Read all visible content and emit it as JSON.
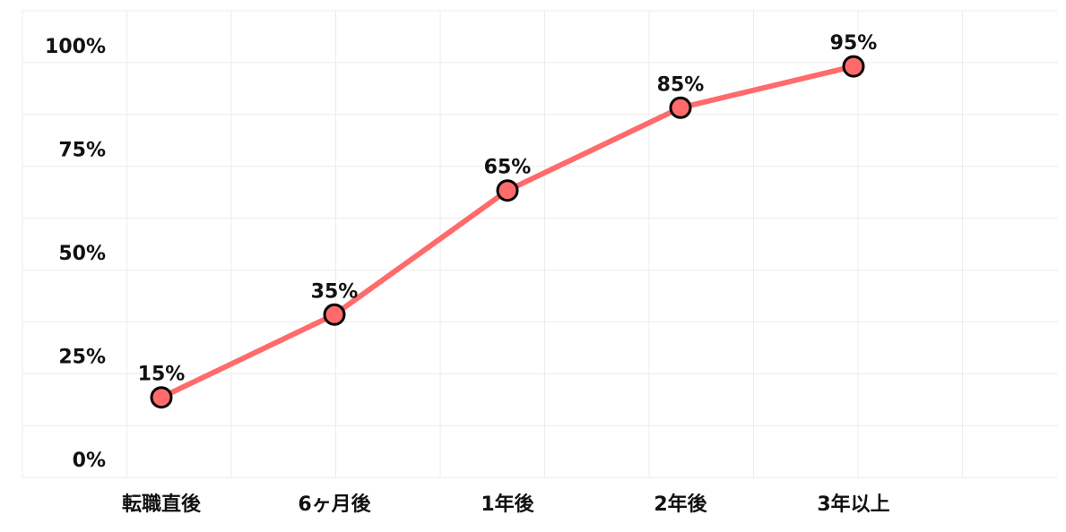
{
  "chart_data": {
    "type": "line",
    "categories": [
      "転職直後",
      "6ヶ月後",
      "1年後",
      "2年後",
      "3年以上"
    ],
    "series": [
      {
        "values": [
          15,
          35,
          65,
          85,
          95
        ],
        "data_labels": [
          "15%",
          "35%",
          "65%",
          "85%",
          "95%"
        ],
        "color": "#ff6b6b"
      }
    ],
    "y_ticks": [
      "0%",
      "25%",
      "50%",
      "75%",
      "100%"
    ],
    "y_tick_values": [
      0,
      25,
      50,
      75,
      100
    ],
    "ylim": [
      0,
      100
    ],
    "title": "",
    "xlabel": "",
    "ylabel": "",
    "grid": true,
    "legend": "none",
    "marker_edge_color": "#000000"
  }
}
